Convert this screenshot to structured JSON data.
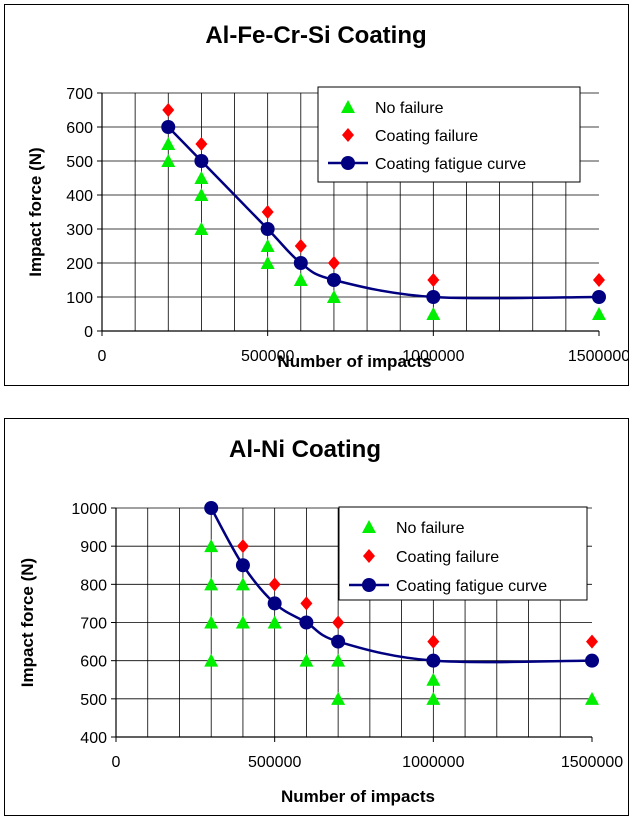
{
  "chart_data": [
    {
      "type": "scatter",
      "title": "Al-Fe-Cr-Si Coating",
      "xlabel": "Number of impacts",
      "ylabel": "Impact force (N)",
      "xlim": [
        0,
        1500000
      ],
      "ylim": [
        0,
        700
      ],
      "x_ticks": [
        0,
        500000,
        1000000,
        1500000
      ],
      "y_ticks": [
        0,
        100,
        200,
        300,
        400,
        500,
        600,
        700
      ],
      "x_tick_labels": [
        "0",
        "500000",
        "1000000",
        "1500000"
      ],
      "y_tick_labels": [
        "0",
        "100",
        "200",
        "300",
        "400",
        "500",
        "600",
        "700"
      ],
      "grid": true,
      "legend_position": "top-right",
      "series": [
        {
          "name": "No failure",
          "marker": "triangle",
          "color": "#00ee00",
          "points": [
            [
              200000,
              550
            ],
            [
              200000,
              500
            ],
            [
              300000,
              450
            ],
            [
              300000,
              400
            ],
            [
              300000,
              300
            ],
            [
              500000,
              250
            ],
            [
              500000,
              200
            ],
            [
              600000,
              150
            ],
            [
              700000,
              100
            ],
            [
              1000000,
              50
            ],
            [
              1500000,
              50
            ]
          ]
        },
        {
          "name": "Coating failure",
          "marker": "diamond",
          "color": "#ff0000",
          "points": [
            [
              200000,
              650
            ],
            [
              300000,
              550
            ],
            [
              500000,
              350
            ],
            [
              600000,
              250
            ],
            [
              700000,
              200
            ],
            [
              1000000,
              150
            ],
            [
              1500000,
              150
            ]
          ]
        },
        {
          "name": "Coating fatigue curve",
          "marker": "circle",
          "color": "#000080",
          "line": true,
          "points": [
            [
              200000,
              600
            ],
            [
              300000,
              500
            ],
            [
              500000,
              300
            ],
            [
              600000,
              200
            ],
            [
              700000,
              150
            ],
            [
              1000000,
              100
            ],
            [
              1500000,
              100
            ]
          ]
        }
      ]
    },
    {
      "type": "scatter",
      "title": "Al-Ni Coating",
      "xlabel": "Number of impacts",
      "ylabel": "Impact force (N)",
      "xlim": [
        0,
        1500000
      ],
      "ylim": [
        400,
        1000
      ],
      "x_ticks": [
        0,
        500000,
        1000000,
        1500000
      ],
      "y_ticks": [
        400,
        500,
        600,
        700,
        800,
        900,
        1000
      ],
      "x_tick_labels": [
        "0",
        "500000",
        "1000000",
        "1500000"
      ],
      "y_tick_labels": [
        "400",
        "500",
        "600",
        "700",
        "800",
        "900",
        "1000"
      ],
      "grid": true,
      "legend_position": "top-right",
      "series": [
        {
          "name": "No failure",
          "marker": "triangle",
          "color": "#00ee00",
          "points": [
            [
              300000,
              900
            ],
            [
              300000,
              800
            ],
            [
              300000,
              700
            ],
            [
              300000,
              600
            ],
            [
              400000,
              800
            ],
            [
              400000,
              700
            ],
            [
              500000,
              700
            ],
            [
              600000,
              600
            ],
            [
              700000,
              600
            ],
            [
              700000,
              500
            ],
            [
              1000000,
              550
            ],
            [
              1000000,
              500
            ],
            [
              1500000,
              500
            ]
          ]
        },
        {
          "name": "Coating failure",
          "marker": "diamond",
          "color": "#ff0000",
          "points": [
            [
              400000,
              900
            ],
            [
              500000,
              800
            ],
            [
              600000,
              750
            ],
            [
              700000,
              700
            ],
            [
              1000000,
              650
            ],
            [
              1500000,
              650
            ]
          ]
        },
        {
          "name": "Coating fatigue curve",
          "marker": "circle",
          "color": "#000080",
          "line": true,
          "points": [
            [
              300000,
              1000
            ],
            [
              400000,
              850
            ],
            [
              500000,
              750
            ],
            [
              600000,
              700
            ],
            [
              700000,
              650
            ],
            [
              1000000,
              600
            ],
            [
              1500000,
              600
            ]
          ]
        }
      ]
    }
  ]
}
